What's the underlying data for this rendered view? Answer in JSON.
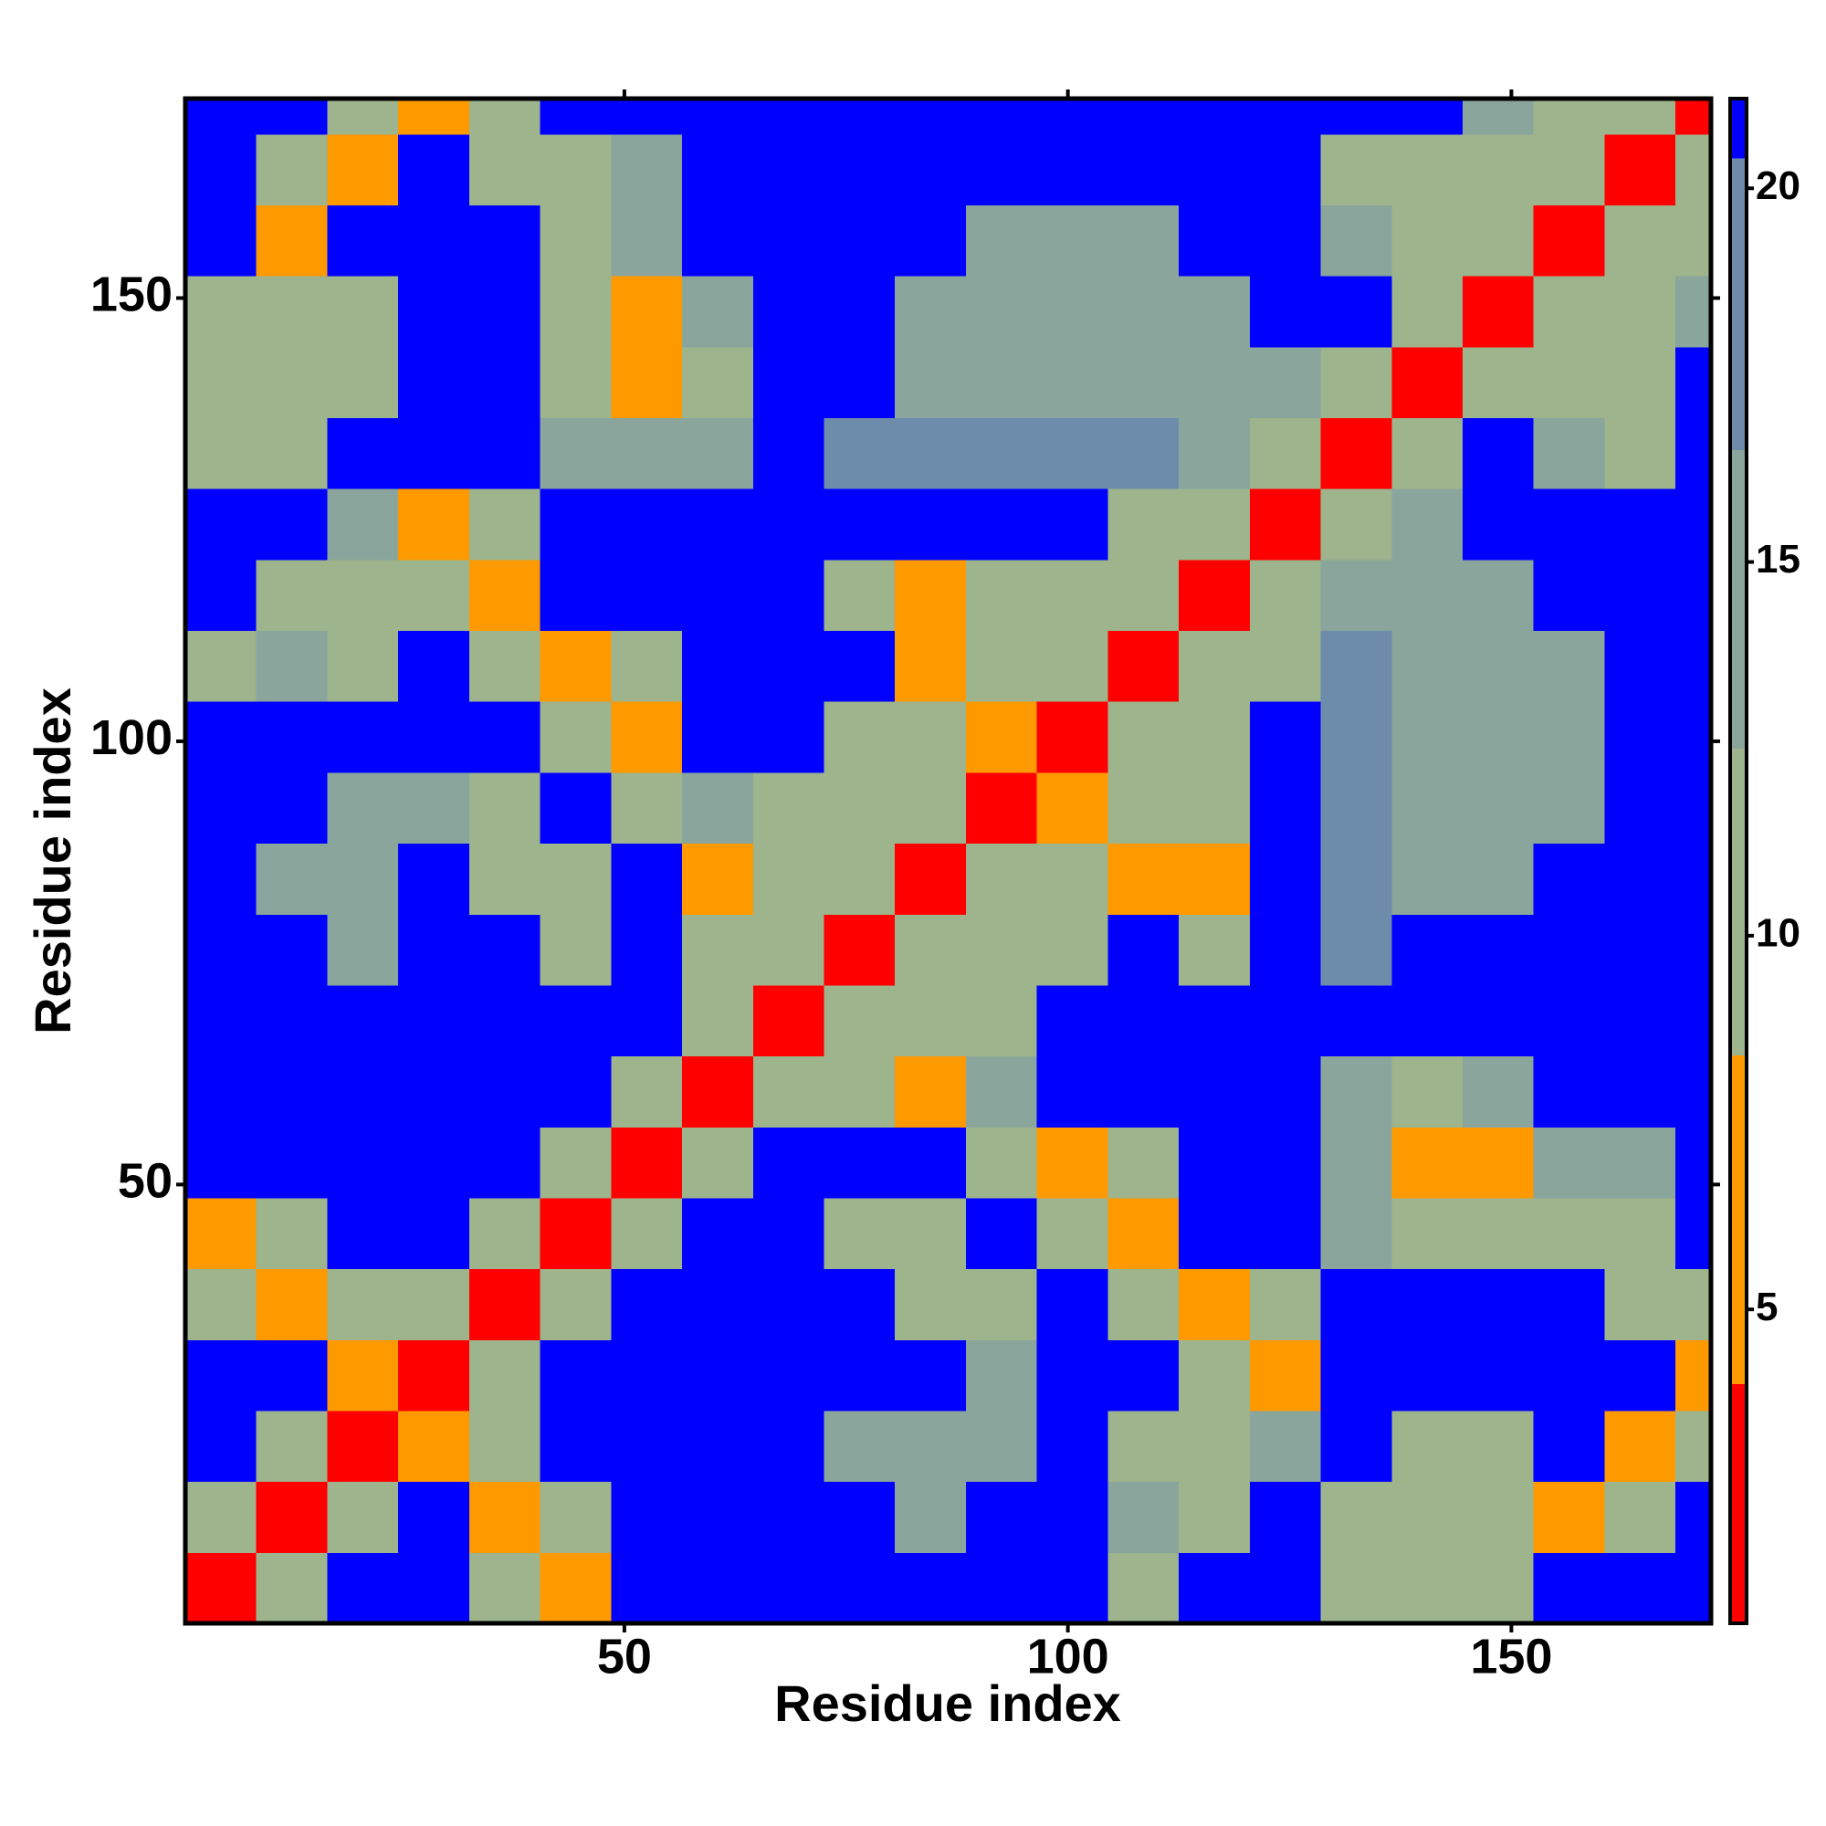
{
  "chart_data": {
    "type": "heatmap",
    "xlabel": "Residue index",
    "ylabel": "Residue index",
    "xlim": [
      0.5,
      172.5
    ],
    "ylim": [
      0.5,
      172.5
    ],
    "xticks": [
      50,
      100,
      150
    ],
    "yticks": [
      50,
      100,
      150
    ],
    "x_bins": [
      0.5,
      8.5,
      16.5,
      24.5,
      32.5,
      40.5,
      48.5,
      56.5,
      64.5,
      72.5,
      80.5,
      88.5,
      96.5,
      104.5,
      112.5,
      120.5,
      128.5,
      136.5,
      144.5,
      152.5,
      160.5,
      168.5,
      172.5
    ],
    "y_bins": [
      0.5,
      8.5,
      16.5,
      24.5,
      32.5,
      40.5,
      48.5,
      56.5,
      64.5,
      72.5,
      80.5,
      88.5,
      96.5,
      104.5,
      112.5,
      120.5,
      128.5,
      136.5,
      144.5,
      152.5,
      160.5,
      168.5,
      172.5
    ],
    "zlim": [
      0.8,
      21.2
    ],
    "zticks": [
      5,
      10,
      15,
      20
    ],
    "color_bins": [
      {
        "to": 4,
        "color": "#ff0000"
      },
      {
        "to": 8.4,
        "color": "#ff9900"
      },
      {
        "to": 12.5,
        "color": "#9db48c"
      },
      {
        "to": 16.5,
        "color": "#8aa59c"
      },
      {
        "to": 20.4,
        "color": "#6d8cab"
      },
      {
        "to": 21.2,
        "color": "#0000ff"
      }
    ],
    "z": [
      [
        3,
        9,
        21,
        21,
        11,
        7,
        21,
        21,
        21,
        21,
        21,
        21,
        21,
        12,
        21,
        21,
        12,
        12,
        12,
        21,
        21,
        21
      ],
      [
        9,
        3,
        9,
        21,
        7,
        11,
        21,
        21,
        21,
        21,
        14,
        21,
        21,
        13,
        12,
        21,
        12,
        12,
        12,
        7,
        11,
        21
      ],
      [
        21,
        9,
        3,
        7,
        11,
        21,
        21,
        21,
        21,
        15,
        14,
        14,
        21,
        12,
        12,
        13,
        21,
        12,
        12,
        21,
        7,
        11
      ],
      [
        21,
        21,
        7,
        3,
        9,
        21,
        21,
        21,
        21,
        21,
        21,
        13,
        21,
        21,
        11,
        7,
        21,
        21,
        21,
        21,
        21,
        7
      ],
      [
        11,
        7,
        11,
        9,
        3,
        9,
        21,
        21,
        21,
        21,
        12,
        12,
        21,
        11,
        7,
        12,
        21,
        21,
        21,
        21,
        11,
        11
      ],
      [
        7,
        11,
        21,
        21,
        9,
        3,
        9,
        21,
        21,
        12,
        12,
        21,
        11,
        7,
        21,
        21,
        13,
        12,
        12,
        11,
        11,
        21
      ],
      [
        21,
        21,
        21,
        21,
        21,
        9,
        3,
        9,
        21,
        21,
        21,
        12,
        7,
        12,
        21,
        21,
        13,
        7,
        7,
        13,
        13,
        21
      ],
      [
        21,
        21,
        21,
        21,
        21,
        21,
        9,
        3,
        9,
        11,
        8,
        13,
        21,
        21,
        21,
        21,
        13,
        12,
        13,
        21,
        21,
        21
      ],
      [
        21,
        21,
        21,
        21,
        21,
        21,
        21,
        9,
        3,
        9,
        11,
        12,
        21,
        21,
        21,
        21,
        21,
        21,
        21,
        21,
        21,
        21
      ],
      [
        21,
        21,
        15,
        21,
        21,
        12,
        21,
        11,
        9,
        3,
        9,
        12,
        12,
        21,
        12,
        21,
        17,
        21,
        21,
        21,
        21,
        21
      ],
      [
        21,
        14,
        14,
        21,
        12,
        12,
        21,
        8,
        11,
        9,
        3,
        9,
        10,
        7,
        7,
        21,
        17,
        16,
        16,
        21,
        21,
        21
      ],
      [
        21,
        21,
        14,
        13,
        12,
        21,
        12,
        13,
        12,
        12,
        9,
        3,
        5,
        11,
        11,
        21,
        17,
        16,
        16,
        16,
        21,
        21
      ],
      [
        21,
        21,
        21,
        21,
        21,
        11,
        7,
        21,
        21,
        12,
        10,
        5,
        3,
        9,
        12,
        21,
        17,
        16,
        16,
        16,
        21,
        21
      ],
      [
        12,
        13,
        12,
        21,
        11,
        7,
        12,
        21,
        21,
        21,
        7,
        11,
        9,
        3,
        9,
        12,
        17,
        16,
        16,
        16,
        21,
        21
      ],
      [
        21,
        12,
        12,
        11,
        7,
        21,
        21,
        21,
        21,
        12,
        7,
        11,
        12,
        9,
        3,
        9,
        13,
        16,
        16,
        21,
        21,
        21
      ],
      [
        21,
        21,
        13,
        7,
        12,
        21,
        21,
        21,
        21,
        21,
        21,
        21,
        21,
        12,
        9,
        3,
        9,
        13,
        21,
        21,
        21,
        21
      ],
      [
        12,
        12,
        21,
        21,
        21,
        13,
        13,
        13,
        21,
        17,
        17,
        17,
        17,
        17,
        13,
        9,
        3,
        9,
        21,
        13,
        11,
        21
      ],
      [
        12,
        12,
        12,
        21,
        21,
        12,
        7,
        12,
        21,
        21,
        16,
        16,
        16,
        16,
        16,
        13,
        9,
        3,
        9,
        11,
        12,
        21
      ],
      [
        12,
        12,
        12,
        21,
        21,
        12,
        7,
        13,
        21,
        21,
        16,
        16,
        16,
        16,
        16,
        21,
        21,
        9,
        3,
        9,
        10,
        14
      ],
      [
        21,
        7,
        21,
        21,
        21,
        11,
        13,
        21,
        21,
        21,
        21,
        16,
        16,
        16,
        21,
        21,
        13,
        11,
        9,
        3,
        9,
        10
      ],
      [
        21,
        11,
        7,
        21,
        11,
        11,
        13,
        21,
        21,
        21,
        21,
        21,
        21,
        21,
        21,
        21,
        11,
        12,
        10,
        9,
        3,
        9
      ],
      [
        21,
        21,
        11,
        7,
        11,
        21,
        21,
        21,
        21,
        21,
        21,
        21,
        21,
        21,
        21,
        21,
        21,
        21,
        14,
        10,
        9,
        3
      ]
    ]
  }
}
